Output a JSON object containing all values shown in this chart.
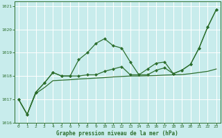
{
  "title": "Graphe pression niveau de la mer (hPa)",
  "bg_color": "#c8ecec",
  "grid_color": "#a8d8d8",
  "line_color": "#2d6e2d",
  "marker_color": "#2d6e2d",
  "xlim": [
    -0.5,
    23.5
  ],
  "ylim": [
    1016.0,
    1021.2
  ],
  "yticks": [
    1016,
    1017,
    1018,
    1019,
    1020,
    1021
  ],
  "xticks": [
    0,
    1,
    2,
    3,
    4,
    5,
    6,
    7,
    8,
    9,
    10,
    11,
    12,
    13,
    14,
    15,
    16,
    17,
    18,
    19,
    20,
    21,
    22,
    23
  ],
  "series1": [
    1017.0,
    1016.35,
    1017.3,
    1017.7,
    1018.15,
    1018.0,
    1018.0,
    1018.7,
    1019.0,
    1019.4,
    1019.6,
    1019.3,
    1019.2,
    1018.6,
    1018.05,
    1018.3,
    1018.55,
    1018.6,
    1018.1,
    1018.25,
    1018.5,
    1019.2,
    1020.1,
    1020.85
  ],
  "series2": [
    1017.0,
    1016.35,
    1017.3,
    1017.7,
    1018.15,
    1018.0,
    1018.0,
    1018.0,
    1018.05,
    1018.05,
    1018.2,
    1018.3,
    1018.4,
    1018.05,
    1018.05,
    1018.05,
    1018.25,
    1018.35,
    1018.1,
    1018.25,
    1018.5,
    1019.2,
    1020.1,
    1020.85
  ],
  "series3": [
    1017.0,
    1016.35,
    1017.25,
    1017.5,
    1017.8,
    1017.82,
    1017.84,
    1017.87,
    1017.89,
    1017.91,
    1017.93,
    1017.96,
    1017.98,
    1018.0,
    1018.0,
    1018.01,
    1018.02,
    1018.04,
    1018.05,
    1018.06,
    1018.1,
    1018.15,
    1018.2,
    1018.3
  ]
}
